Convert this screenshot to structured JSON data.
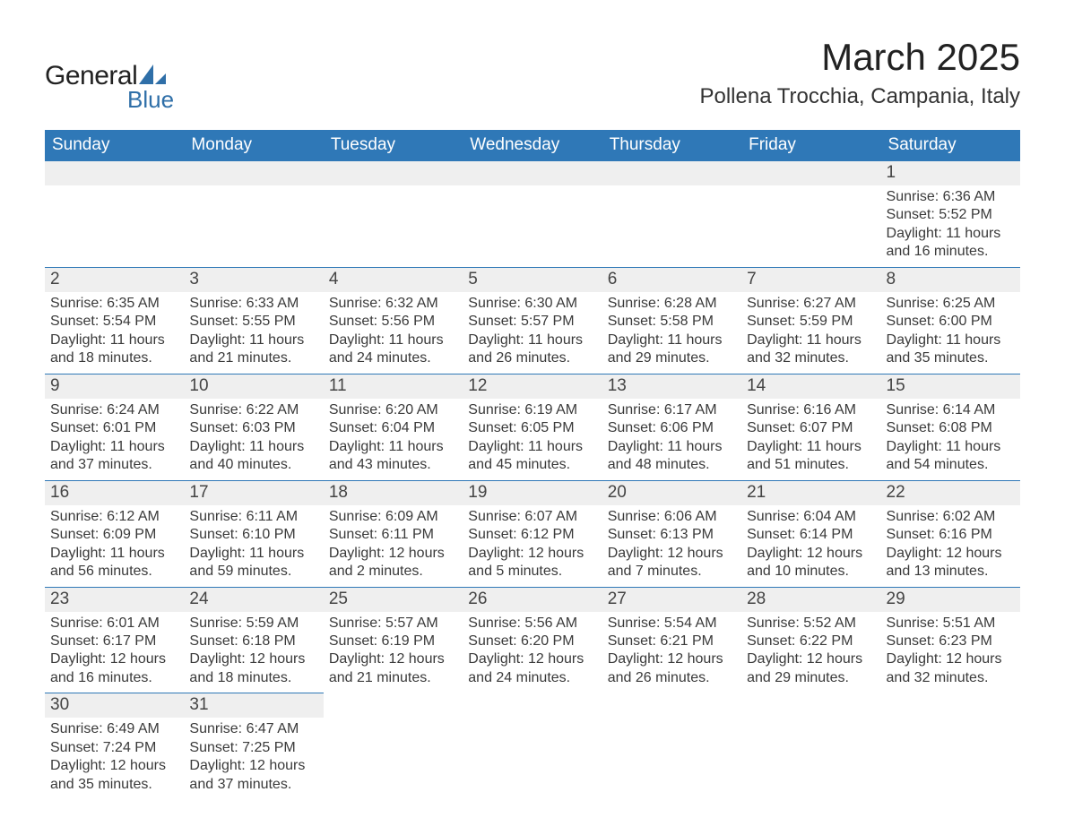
{
  "brand": {
    "name_a": "General",
    "name_b": "Blue"
  },
  "title": "March 2025",
  "location": "Pollena Trocchia, Campania, Italy",
  "colors": {
    "header_bg": "#2f78b7",
    "header_text": "#ffffff",
    "daynum_bg": "#efefef",
    "row_divider": "#2f78b7",
    "body_text": "#3a3a3a",
    "logo_blue": "#2f6fa8"
  },
  "day_labels": [
    "Sunday",
    "Monday",
    "Tuesday",
    "Wednesday",
    "Thursday",
    "Friday",
    "Saturday"
  ],
  "weeks": [
    [
      null,
      null,
      null,
      null,
      null,
      null,
      {
        "n": "1",
        "sunrise": "6:36 AM",
        "sunset": "5:52 PM",
        "daylight": "11 hours and 16 minutes."
      }
    ],
    [
      {
        "n": "2",
        "sunrise": "6:35 AM",
        "sunset": "5:54 PM",
        "daylight": "11 hours and 18 minutes."
      },
      {
        "n": "3",
        "sunrise": "6:33 AM",
        "sunset": "5:55 PM",
        "daylight": "11 hours and 21 minutes."
      },
      {
        "n": "4",
        "sunrise": "6:32 AM",
        "sunset": "5:56 PM",
        "daylight": "11 hours and 24 minutes."
      },
      {
        "n": "5",
        "sunrise": "6:30 AM",
        "sunset": "5:57 PM",
        "daylight": "11 hours and 26 minutes."
      },
      {
        "n": "6",
        "sunrise": "6:28 AM",
        "sunset": "5:58 PM",
        "daylight": "11 hours and 29 minutes."
      },
      {
        "n": "7",
        "sunrise": "6:27 AM",
        "sunset": "5:59 PM",
        "daylight": "11 hours and 32 minutes."
      },
      {
        "n": "8",
        "sunrise": "6:25 AM",
        "sunset": "6:00 PM",
        "daylight": "11 hours and 35 minutes."
      }
    ],
    [
      {
        "n": "9",
        "sunrise": "6:24 AM",
        "sunset": "6:01 PM",
        "daylight": "11 hours and 37 minutes."
      },
      {
        "n": "10",
        "sunrise": "6:22 AM",
        "sunset": "6:03 PM",
        "daylight": "11 hours and 40 minutes."
      },
      {
        "n": "11",
        "sunrise": "6:20 AM",
        "sunset": "6:04 PM",
        "daylight": "11 hours and 43 minutes."
      },
      {
        "n": "12",
        "sunrise": "6:19 AM",
        "sunset": "6:05 PM",
        "daylight": "11 hours and 45 minutes."
      },
      {
        "n": "13",
        "sunrise": "6:17 AM",
        "sunset": "6:06 PM",
        "daylight": "11 hours and 48 minutes."
      },
      {
        "n": "14",
        "sunrise": "6:16 AM",
        "sunset": "6:07 PM",
        "daylight": "11 hours and 51 minutes."
      },
      {
        "n": "15",
        "sunrise": "6:14 AM",
        "sunset": "6:08 PM",
        "daylight": "11 hours and 54 minutes."
      }
    ],
    [
      {
        "n": "16",
        "sunrise": "6:12 AM",
        "sunset": "6:09 PM",
        "daylight": "11 hours and 56 minutes."
      },
      {
        "n": "17",
        "sunrise": "6:11 AM",
        "sunset": "6:10 PM",
        "daylight": "11 hours and 59 minutes."
      },
      {
        "n": "18",
        "sunrise": "6:09 AM",
        "sunset": "6:11 PM",
        "daylight": "12 hours and 2 minutes."
      },
      {
        "n": "19",
        "sunrise": "6:07 AM",
        "sunset": "6:12 PM",
        "daylight": "12 hours and 5 minutes."
      },
      {
        "n": "20",
        "sunrise": "6:06 AM",
        "sunset": "6:13 PM",
        "daylight": "12 hours and 7 minutes."
      },
      {
        "n": "21",
        "sunrise": "6:04 AM",
        "sunset": "6:14 PM",
        "daylight": "12 hours and 10 minutes."
      },
      {
        "n": "22",
        "sunrise": "6:02 AM",
        "sunset": "6:16 PM",
        "daylight": "12 hours and 13 minutes."
      }
    ],
    [
      {
        "n": "23",
        "sunrise": "6:01 AM",
        "sunset": "6:17 PM",
        "daylight": "12 hours and 16 minutes."
      },
      {
        "n": "24",
        "sunrise": "5:59 AM",
        "sunset": "6:18 PM",
        "daylight": "12 hours and 18 minutes."
      },
      {
        "n": "25",
        "sunrise": "5:57 AM",
        "sunset": "6:19 PM",
        "daylight": "12 hours and 21 minutes."
      },
      {
        "n": "26",
        "sunrise": "5:56 AM",
        "sunset": "6:20 PM",
        "daylight": "12 hours and 24 minutes."
      },
      {
        "n": "27",
        "sunrise": "5:54 AM",
        "sunset": "6:21 PM",
        "daylight": "12 hours and 26 minutes."
      },
      {
        "n": "28",
        "sunrise": "5:52 AM",
        "sunset": "6:22 PM",
        "daylight": "12 hours and 29 minutes."
      },
      {
        "n": "29",
        "sunrise": "5:51 AM",
        "sunset": "6:23 PM",
        "daylight": "12 hours and 32 minutes."
      }
    ],
    [
      {
        "n": "30",
        "sunrise": "6:49 AM",
        "sunset": "7:24 PM",
        "daylight": "12 hours and 35 minutes."
      },
      {
        "n": "31",
        "sunrise": "6:47 AM",
        "sunset": "7:25 PM",
        "daylight": "12 hours and 37 minutes."
      },
      null,
      null,
      null,
      null,
      null
    ]
  ],
  "labels": {
    "sunrise": "Sunrise:",
    "sunset": "Sunset:",
    "daylight": "Daylight:"
  }
}
